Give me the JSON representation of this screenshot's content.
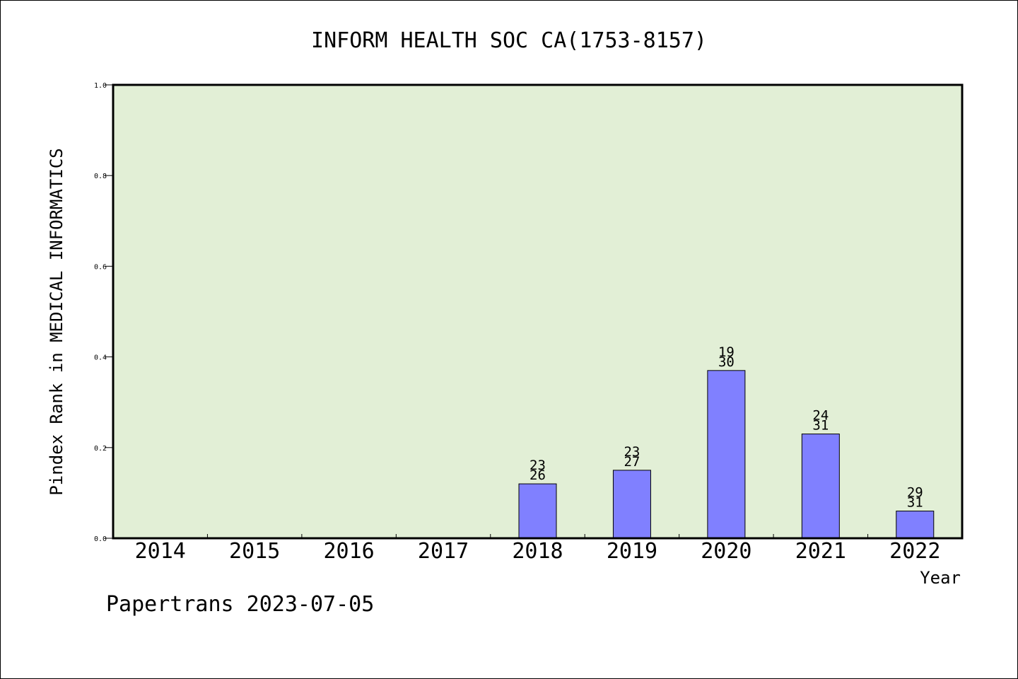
{
  "chart_data": {
    "type": "bar",
    "title": "INFORM HEALTH SOC CA(1753-8157)",
    "xlabel": "Year",
    "ylabel": "Pindex Rank in MEDICAL INFORMATICS",
    "categories": [
      "2014",
      "2015",
      "2016",
      "2017",
      "2018",
      "2019",
      "2020",
      "2021",
      "2022"
    ],
    "values": [
      null,
      null,
      null,
      null,
      0.12,
      0.15,
      0.37,
      0.23,
      0.06
    ],
    "bar_labels": [
      null,
      null,
      null,
      null,
      [
        "23",
        "26"
      ],
      [
        "23",
        "27"
      ],
      [
        "19",
        "30"
      ],
      [
        "24",
        "31"
      ],
      [
        "29",
        "31"
      ]
    ],
    "ylim": [
      0,
      1.0
    ],
    "yticks": [
      "0.0",
      "0.2",
      "0.4",
      "0.6",
      "0.8",
      "1.0"
    ],
    "grid": false,
    "legend": "none",
    "colors": {
      "plot_background": "#e2efd6",
      "bar_fill": "#8080ff",
      "bar_stroke": "#000000"
    }
  },
  "footer": "Papertrans 2023-07-05"
}
